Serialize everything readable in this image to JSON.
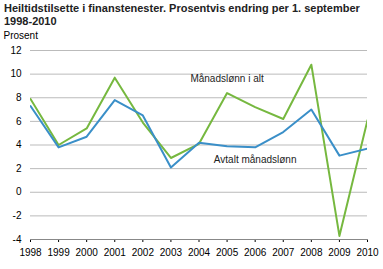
{
  "chart_data": {
    "type": "line",
    "title": "Heiltidstilsette i finanstenester. Prosentvis endring per 1. september 1998-2010",
    "y_label": "Prosent",
    "x": [
      1998,
      1999,
      2000,
      2001,
      2002,
      2003,
      2004,
      2005,
      2006,
      2007,
      2008,
      2009,
      2010
    ],
    "xlim": [
      1998,
      2010
    ],
    "xticks": [
      1998,
      1999,
      2000,
      2001,
      2002,
      2003,
      2004,
      2005,
      2006,
      2007,
      2008,
      2009,
      2010
    ],
    "ylim": [
      -4,
      12
    ],
    "yticks": [
      -4,
      -2,
      0,
      2,
      4,
      6,
      8,
      10,
      12
    ],
    "grid": true,
    "series": [
      {
        "name": "Månadslønn i alt",
        "color": "#76b83f",
        "values": [
          7.9,
          4.0,
          5.4,
          9.7,
          5.9,
          2.9,
          4.1,
          8.4,
          7.2,
          6.2,
          10.8,
          -3.7,
          6.1
        ]
      },
      {
        "name": "Avtalt månadslønn",
        "color": "#3a8fc8",
        "values": [
          7.3,
          3.8,
          4.7,
          7.8,
          6.5,
          2.1,
          4.2,
          3.9,
          3.8,
          5.1,
          7.0,
          3.1,
          3.7
        ]
      }
    ]
  }
}
